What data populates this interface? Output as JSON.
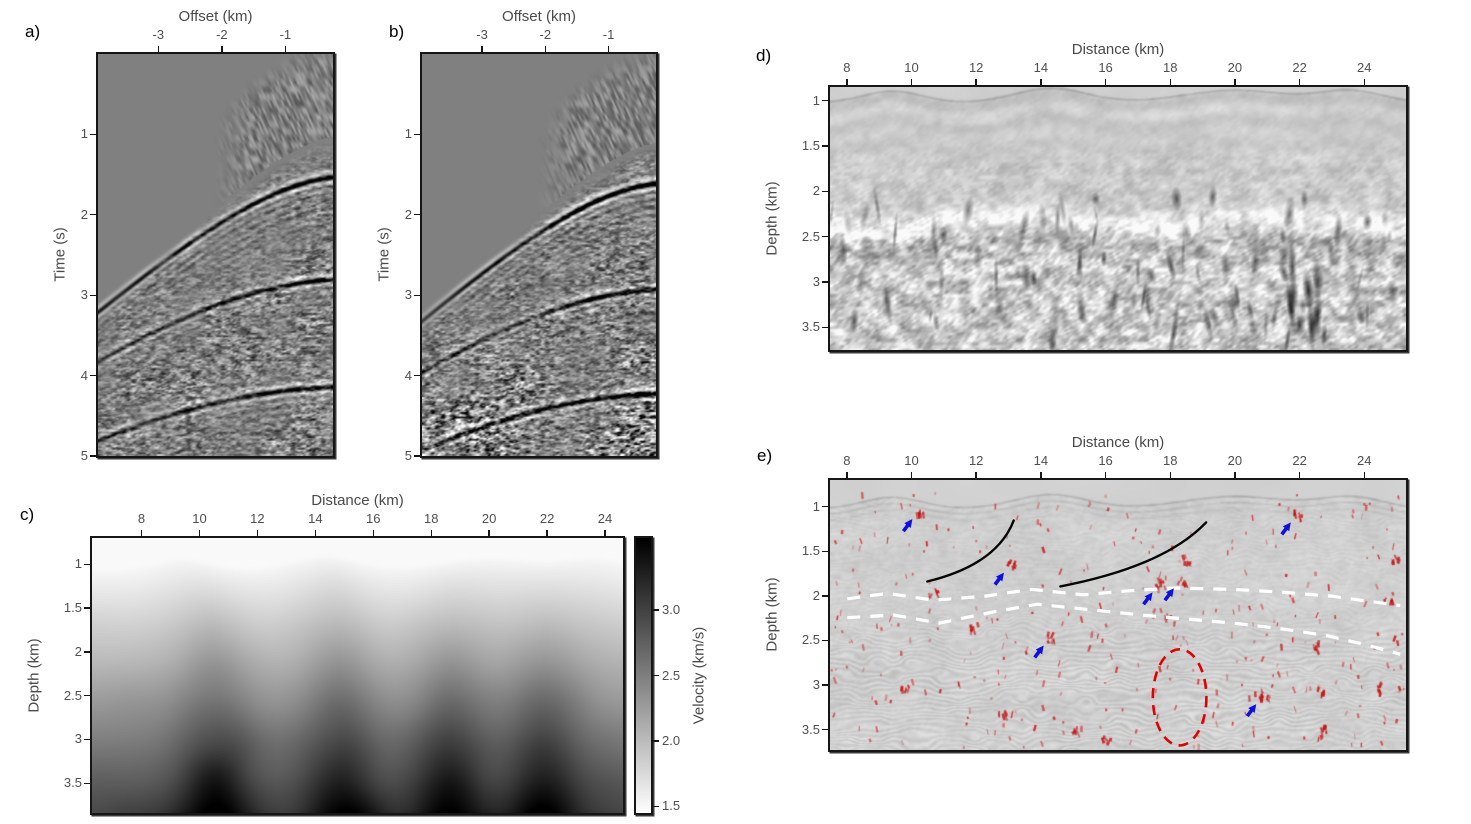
{
  "chart_data": [
    {
      "id": "a",
      "panel_label": "a)",
      "type": "heatmap",
      "subtype": "seismic-gather",
      "xlabel": "Offset (km)",
      "ylabel": "Time (s)",
      "xlim": [
        -3.95,
        -0.25
      ],
      "ylim": [
        0,
        5
      ],
      "x_ticks": [
        {
          "v": -3,
          "t": "-3"
        },
        {
          "v": -2,
          "t": "-2"
        },
        {
          "v": -1,
          "t": "-1"
        }
      ],
      "y_ticks": [
        {
          "v": 1,
          "t": "1"
        },
        {
          "v": 2,
          "t": "2"
        },
        {
          "v": 3,
          "t": "3"
        },
        {
          "v": 4,
          "t": "4"
        },
        {
          "v": 5,
          "t": "5"
        }
      ],
      "seed": 7,
      "events": [
        {
          "t0": 1.52,
          "v": 1.4,
          "amp": 1.0
        },
        {
          "t0": 2.8,
          "v": 1.52,
          "amp": 0.8
        },
        {
          "t0": 4.14,
          "v": 1.62,
          "amp": 0.95
        }
      ],
      "first_arrival": {
        "t0": 1.0,
        "v": 1.3
      },
      "noise_level": 0.12
    },
    {
      "id": "b",
      "panel_label": "b)",
      "type": "heatmap",
      "subtype": "seismic-gather",
      "xlabel": "Offset (km)",
      "ylabel": "Time (s)",
      "xlim": [
        -3.95,
        -0.25
      ],
      "ylim": [
        0,
        5
      ],
      "x_ticks": [
        {
          "v": -3,
          "t": "-3"
        },
        {
          "v": -2,
          "t": "-2"
        },
        {
          "v": -1,
          "t": "-1"
        }
      ],
      "y_ticks": [
        {
          "v": 1,
          "t": "1"
        },
        {
          "v": 2,
          "t": "2"
        },
        {
          "v": 3,
          "t": "3"
        },
        {
          "v": 4,
          "t": "4"
        },
        {
          "v": 5,
          "t": "5"
        }
      ],
      "seed": 13,
      "events": [
        {
          "t0": 1.6,
          "v": 1.36,
          "amp": 1.05
        },
        {
          "t0": 2.92,
          "v": 1.48,
          "amp": 0.85
        },
        {
          "t0": 4.22,
          "v": 1.56,
          "amp": 1.1
        }
      ],
      "first_arrival": {
        "t0": 1.08,
        "v": 1.26
      },
      "noise_level": 0.14
    },
    {
      "id": "c",
      "panel_label": "c)",
      "type": "heatmap",
      "subtype": "velocity-model",
      "xlabel": "Distance (km)",
      "ylabel": "Depth (km)",
      "xlim": [
        6.29,
        24.62
      ],
      "ylim": [
        0.7,
        3.84
      ],
      "x_ticks": [
        {
          "v": 8,
          "t": "8"
        },
        {
          "v": 10,
          "t": "10"
        },
        {
          "v": 12,
          "t": "12"
        },
        {
          "v": 14,
          "t": "14"
        },
        {
          "v": 16,
          "t": "16"
        },
        {
          "v": 18,
          "t": "18"
        },
        {
          "v": 20,
          "t": "20"
        },
        {
          "v": 22,
          "t": "22"
        },
        {
          "v": 24,
          "t": "24"
        }
      ],
      "y_ticks": [
        {
          "v": 1,
          "t": "1"
        },
        {
          "v": 1.5,
          "t": "1.5"
        },
        {
          "v": 2,
          "t": "2"
        },
        {
          "v": 2.5,
          "t": "2.5"
        },
        {
          "v": 3,
          "t": "3"
        },
        {
          "v": 3.5,
          "t": "3.5"
        }
      ],
      "colorbar": {
        "label": "Velocity (km/s)",
        "vmin": 1.45,
        "vmax": 3.55,
        "ticks": [
          {
            "v": 1.5,
            "t": "1.5"
          },
          {
            "v": 2.0,
            "t": "2.0"
          },
          {
            "v": 2.5,
            "t": "2.5"
          },
          {
            "v": 3.0,
            "t": "3.0"
          }
        ]
      },
      "surface_bumps": {
        "base_depth": 1.02,
        "centers": [
          9.4,
          14.3,
          20.0,
          23.6
        ],
        "widths": [
          1.3,
          1.6,
          2.3,
          1.4
        ],
        "amps": [
          0.13,
          0.16,
          0.14,
          0.13
        ]
      },
      "high_velocity_columns": [
        10.6,
        14.9,
        18.6,
        21.9
      ],
      "v_surface": 1.5,
      "v_max_bottom": 3.6
    },
    {
      "id": "d",
      "panel_label": "d)",
      "type": "heatmap",
      "subtype": "migrated-image",
      "xlabel": "Distance (km)",
      "ylabel": "Depth (km)",
      "xlim": [
        7.48,
        25.29
      ],
      "ylim": [
        0.85,
        3.75
      ],
      "x_ticks": [
        {
          "v": 8,
          "t": "8"
        },
        {
          "v": 10,
          "t": "10"
        },
        {
          "v": 12,
          "t": "12"
        },
        {
          "v": 14,
          "t": "14"
        },
        {
          "v": 16,
          "t": "16"
        },
        {
          "v": 18,
          "t": "18"
        },
        {
          "v": 20,
          "t": "20"
        },
        {
          "v": 22,
          "t": "22"
        },
        {
          "v": 24,
          "t": "24"
        }
      ],
      "y_ticks": [
        {
          "v": 1,
          "t": "1"
        },
        {
          "v": 1.5,
          "t": "1.5"
        },
        {
          "v": 2,
          "t": "2"
        },
        {
          "v": 2.5,
          "t": "2.5"
        },
        {
          "v": 3,
          "t": "3"
        },
        {
          "v": 3.5,
          "t": "3.5"
        }
      ],
      "seed": 21,
      "surface_bumps": {
        "base_depth": 1.02,
        "centers": [
          9.4,
          14.3,
          20.0,
          23.6
        ],
        "widths": [
          1.3,
          1.6,
          2.3,
          1.4
        ],
        "amps": [
          0.13,
          0.16,
          0.14,
          0.13
        ]
      },
      "bright_band_depth": 2.34
    },
    {
      "id": "e",
      "panel_label": "e)",
      "type": "heatmap",
      "subtype": "migrated-image-annotated",
      "xlabel": "Distance (km)",
      "ylabel": "Depth (km)",
      "xlim": [
        7.48,
        25.29
      ],
      "ylim": [
        0.7,
        3.73
      ],
      "x_ticks": [
        {
          "v": 8,
          "t": "8"
        },
        {
          "v": 10,
          "t": "10"
        },
        {
          "v": 12,
          "t": "12"
        },
        {
          "v": 14,
          "t": "14"
        },
        {
          "v": 16,
          "t": "16"
        },
        {
          "v": 18,
          "t": "18"
        },
        {
          "v": 20,
          "t": "20"
        },
        {
          "v": 22,
          "t": "22"
        },
        {
          "v": 24,
          "t": "24"
        }
      ],
      "y_ticks": [
        {
          "v": 1,
          "t": "1"
        },
        {
          "v": 1.5,
          "t": "1.5"
        },
        {
          "v": 2,
          "t": "2"
        },
        {
          "v": 2.5,
          "t": "2.5"
        },
        {
          "v": 3,
          "t": "3"
        },
        {
          "v": 3.5,
          "t": "3.5"
        }
      ],
      "seed": 33,
      "surface_bumps": {
        "base_depth": 1.02,
        "centers": [
          9.4,
          14.3,
          20.0,
          23.6
        ],
        "widths": [
          1.3,
          1.6,
          2.3,
          1.4
        ],
        "amps": [
          0.13,
          0.16,
          0.14,
          0.13
        ]
      },
      "red_anomaly_spots": [
        [
          0.156,
          0.117
        ],
        [
          0.813,
          0.129
        ],
        [
          0.315,
          0.315
        ],
        [
          0.573,
          0.388
        ],
        [
          0.61,
          0.373
        ],
        [
          0.384,
          0.585
        ],
        [
          0.753,
          0.802
        ],
        [
          0.62,
          0.3
        ],
        [
          0.845,
          0.62
        ],
        [
          0.85,
          0.78
        ],
        [
          0.86,
          0.93
        ],
        [
          0.43,
          0.93
        ],
        [
          0.48,
          0.97
        ],
        [
          0.59,
          0.52
        ],
        [
          0.25,
          0.55
        ],
        [
          0.18,
          0.42
        ],
        [
          0.97,
          0.44
        ],
        [
          0.95,
          0.77
        ],
        [
          0.13,
          0.77
        ],
        [
          0.3,
          0.87
        ],
        [
          0.98,
          0.3
        ]
      ],
      "annotations": {
        "arrow_color": "#1010dc",
        "arrows": [
          [
            0.143,
            0.145
          ],
          [
            0.8,
            0.157
          ],
          [
            0.302,
            0.343
          ],
          [
            0.56,
            0.416
          ],
          [
            0.597,
            0.401
          ],
          [
            0.371,
            0.613
          ],
          [
            0.74,
            0.83
          ]
        ],
        "fault_color": "#050505",
        "fault_curves": [
          {
            "p0": [
              0.169,
              0.376
            ],
            "c": [
              0.29,
              0.313
            ],
            "p2": [
              0.319,
              0.15
            ]
          },
          {
            "p0": [
              0.4,
              0.394
            ],
            "c": [
              0.58,
              0.32
            ],
            "p2": [
              0.653,
              0.157
            ]
          }
        ],
        "horizon_color": "#ffffff",
        "horizon_dashed_lines": [
          [
            [
              0.03,
              0.44
            ],
            [
              0.1,
              0.42
            ],
            [
              0.18,
              0.445
            ],
            [
              0.27,
              0.43
            ],
            [
              0.35,
              0.405
            ],
            [
              0.44,
              0.425
            ],
            [
              0.52,
              0.41
            ],
            [
              0.6,
              0.4
            ],
            [
              0.7,
              0.405
            ],
            [
              0.78,
              0.415
            ],
            [
              0.87,
              0.43
            ],
            [
              0.99,
              0.465
            ]
          ],
          [
            [
              0.03,
              0.51
            ],
            [
              0.11,
              0.5
            ],
            [
              0.19,
              0.53
            ],
            [
              0.28,
              0.49
            ],
            [
              0.36,
              0.46
            ],
            [
              0.45,
              0.48
            ],
            [
              0.54,
              0.5
            ],
            [
              0.62,
              0.515
            ],
            [
              0.7,
              0.53
            ],
            [
              0.78,
              0.55
            ],
            [
              0.86,
              0.575
            ],
            [
              0.93,
              0.61
            ],
            [
              0.99,
              0.645
            ]
          ]
        ],
        "ellipse_color": "#e10000",
        "ellipse": {
          "cx": 0.607,
          "cy": 0.805,
          "rx": 0.0465,
          "ry": 0.178
        }
      }
    }
  ]
}
